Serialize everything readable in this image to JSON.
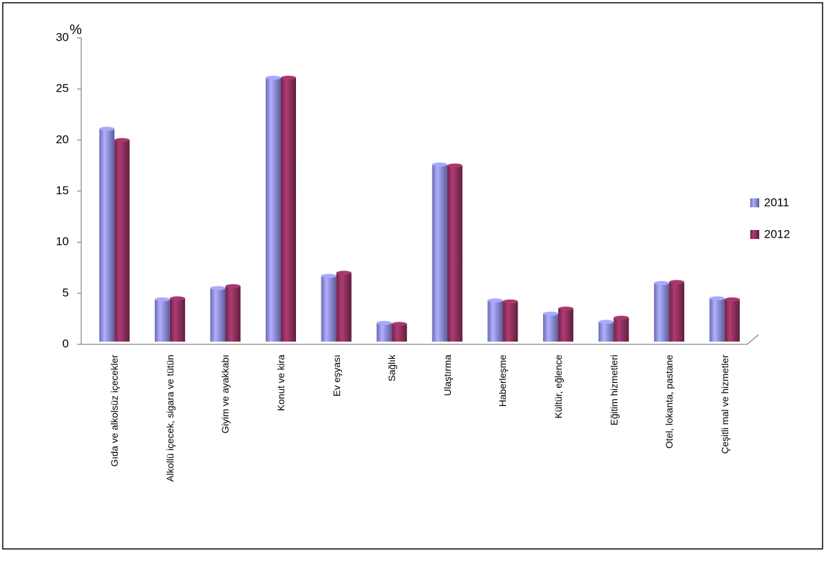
{
  "chart_data": {
    "type": "bar",
    "y_label": "%",
    "categories": [
      "Gıda ve alkolsüz içecekler",
      "Alkollü içecek, sigara ve tütün",
      "Giyim ve ayakkabı",
      "Konut ve kira",
      "Ev eşyası",
      "Sağlık",
      "Ulaştırma",
      "Haberleşme",
      "Kültür, eğlence",
      "Eğitim hizmetleri",
      "Otel, lokanta, pastane",
      "Çeşitli mal ve hizmetler"
    ],
    "series": [
      {
        "name": "2011",
        "color": "#9999ff",
        "values": [
          21.1,
          4.4,
          5.5,
          26.1,
          6.7,
          2.1,
          17.6,
          4.3,
          3.0,
          2.2,
          6.0,
          4.5
        ]
      },
      {
        "name": "2012",
        "color": "#993366",
        "values": [
          20.0,
          4.5,
          5.7,
          26.1,
          7.0,
          2.0,
          17.5,
          4.2,
          3.5,
          2.6,
          6.1,
          4.4
        ]
      }
    ],
    "ylim": [
      0,
      30
    ],
    "yticks": [
      0,
      5,
      10,
      15,
      20,
      25,
      30
    ],
    "legend": "right",
    "grid": false
  }
}
